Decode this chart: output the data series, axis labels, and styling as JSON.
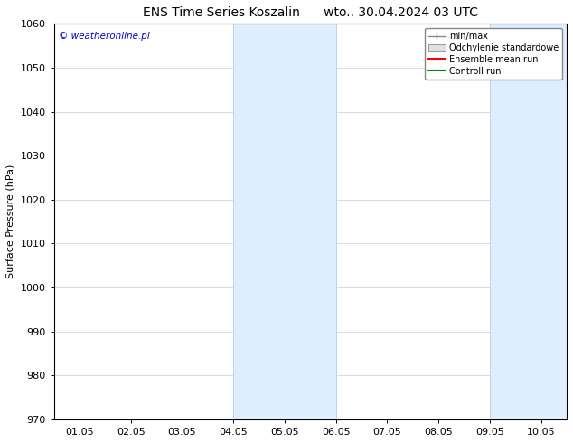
{
  "title": "ENS Time Series Koszalin      wto.. 30.04.2024 03 UTC",
  "ylabel": "Surface Pressure (hPa)",
  "ylim": [
    970,
    1060
  ],
  "yticks": [
    970,
    980,
    990,
    1000,
    1010,
    1020,
    1030,
    1040,
    1050,
    1060
  ],
  "xlim": [
    -0.5,
    9.5
  ],
  "xtick_positions": [
    0,
    1,
    2,
    3,
    4,
    5,
    6,
    7,
    8,
    9
  ],
  "xtick_labels": [
    "01.05",
    "02.05",
    "03.05",
    "04.05",
    "05.05",
    "06.05",
    "07.05",
    "08.05",
    "09.05",
    "10.05"
  ],
  "shade_bands": [
    {
      "start": 3.0,
      "end": 5.0
    },
    {
      "start": 8.0,
      "end": 9.5
    }
  ],
  "shade_color": "#ddeeff",
  "shade_edge_color": "#b8d4ee",
  "legend_labels": [
    "min/max",
    "Odchylenie standardowe",
    "Ensemble mean run",
    "Controll run"
  ],
  "legend_colors_line": [
    "#888888",
    "#cccccc",
    "#ff0000",
    "#008800"
  ],
  "copyright_text": "© weatheronline.pl",
  "copyright_color": "#0000cc",
  "title_fontsize": 10,
  "label_fontsize": 8,
  "tick_fontsize": 8,
  "background_color": "#ffffff",
  "plot_bg_color": "#ffffff",
  "grid_color": "#cccccc",
  "figsize": [
    6.34,
    4.9
  ],
  "dpi": 100
}
